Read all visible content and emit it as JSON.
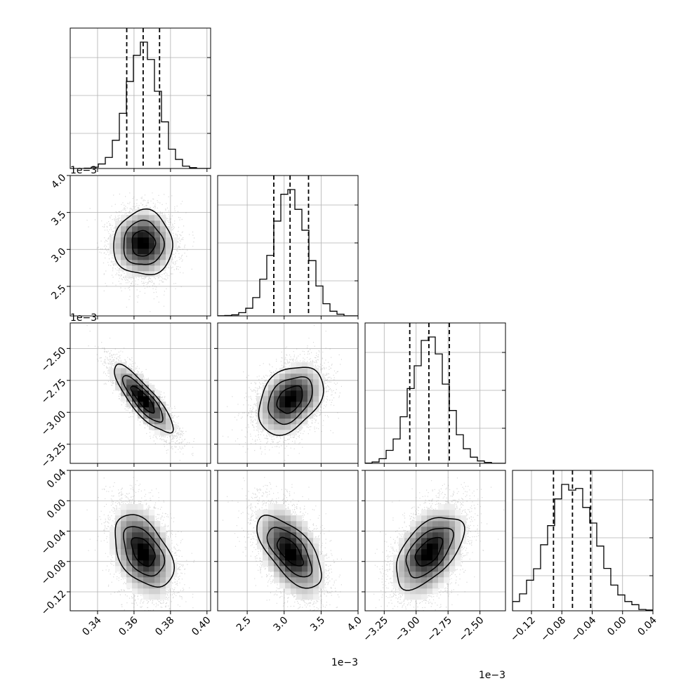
{
  "chart_data": {
    "type": "corner",
    "title": "",
    "parameters": [
      {
        "name": "",
        "axis_range": [
          0.325,
          0.402
        ],
        "ticks": [
          0.34,
          0.36,
          0.38,
          0.4
        ],
        "tick_labels": [
          "0.34",
          "0.36",
          "0.38",
          "0.40"
        ],
        "offset_label": "",
        "mean": 0.365,
        "std": 0.0085,
        "quantiles": [
          0.356,
          0.365,
          0.374
        ]
      },
      {
        "name": "",
        "axis_range": [
          2.1,
          4.0
        ],
        "ticks": [
          2.5,
          3.0,
          3.5,
          4.0
        ],
        "tick_labels": [
          "2.5",
          "3.0",
          "3.5",
          "4.0"
        ],
        "offset_label": "1e−3",
        "mean": 3.08,
        "std": 0.23,
        "quantiles": [
          2.86,
          3.08,
          3.33
        ]
      },
      {
        "name": "",
        "axis_range": [
          -3.4,
          -2.3
        ],
        "ticks": [
          -3.25,
          -3.0,
          -2.75,
          -2.5
        ],
        "tick_labels": [
          "−3.25",
          "−3.00",
          "−2.75",
          "−2.50"
        ],
        "offset_label": "1e−3",
        "mean": -2.9,
        "std": 0.14,
        "quantiles": [
          -3.05,
          -2.9,
          -2.74
        ]
      },
      {
        "name": "",
        "axis_range": [
          -0.145,
          0.04
        ],
        "ticks": [
          -0.12,
          -0.08,
          -0.04,
          0.0,
          0.04
        ],
        "tick_labels": [
          "−0.12",
          "−0.08",
          "−0.04",
          "0.00",
          "0.04"
        ],
        "offset_label": "",
        "mean": -0.067,
        "std": 0.025,
        "quantiles": [
          -0.091,
          -0.066,
          -0.042
        ]
      }
    ],
    "row_offset_labels": [
      "",
      "1e−3",
      "1e−3",
      ""
    ],
    "y_tick_labels": {
      "row1": [
        "2.5",
        "3.0",
        "3.5",
        "4.0"
      ],
      "row2": [
        "−3.25",
        "−3.00",
        "−2.75",
        "−2.50"
      ],
      "row3": [
        "−0.12",
        "−0.08",
        "−0.04",
        "0.00",
        "0.04"
      ]
    },
    "correlations": [
      [
        1.0,
        0.0,
        -0.85,
        -0.45
      ],
      [
        0.0,
        1.0,
        0.35,
        -0.65
      ],
      [
        -0.85,
        0.35,
        1.0,
        0.55
      ],
      [
        -0.45,
        -0.65,
        0.55,
        1.0
      ]
    ],
    "histogram_bins": 20,
    "contour_levels": 3,
    "grid": true,
    "colors": {
      "hist": "#000000",
      "points": "#808080",
      "density": "#000000",
      "quantile_lines": "#000000",
      "grid": "#b0b0b0"
    }
  }
}
